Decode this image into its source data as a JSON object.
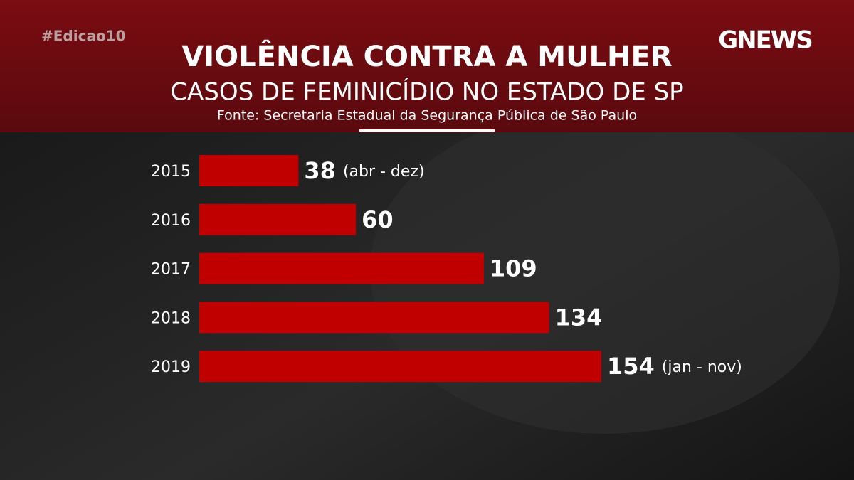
{
  "hashtag": "#Edicao10",
  "logo": "GNEWS",
  "chart_data": {
    "type": "bar",
    "orientation": "horizontal",
    "title": "VIOLÊNCIA CONTRA A MULHER",
    "subtitle": "CASOS DE FEMINICÍDIO NO ESTADO DE SP",
    "source": "Fonte: Secretaria Estadual da Segurança Pública de São Paulo",
    "categories": [
      "2015",
      "2016",
      "2017",
      "2018",
      "2019"
    ],
    "values": [
      38,
      60,
      109,
      134,
      154
    ],
    "value_notes": [
      "(abr - dez)",
      null,
      null,
      null,
      "(jan - nov)"
    ],
    "color": "#c00000"
  }
}
